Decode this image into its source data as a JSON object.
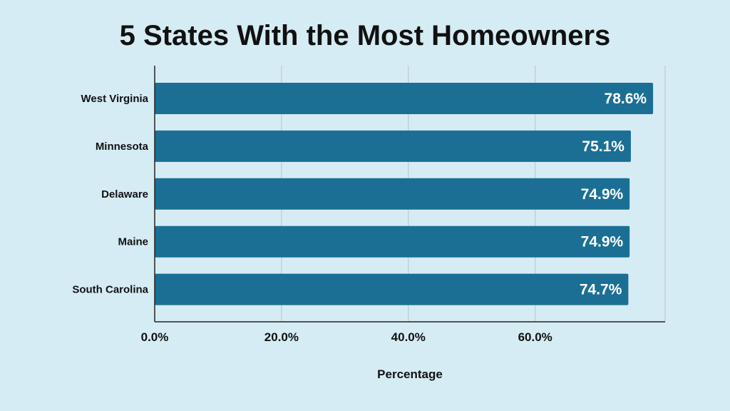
{
  "chart_data": {
    "type": "bar",
    "orientation": "horizontal",
    "title": "5 States With the Most Homeowners",
    "categories": [
      "West Virginia",
      "Minnesota",
      "Delaware",
      "Maine",
      "South Carolina"
    ],
    "values": [
      78.6,
      75.1,
      74.9,
      74.9,
      74.7
    ],
    "value_labels": [
      "78.6%",
      "75.1%",
      "74.9%",
      "74.9%",
      "74.7%"
    ],
    "xlabel": "Percentage",
    "ylabel": "",
    "x_ticks": [
      0,
      20,
      40,
      60
    ],
    "x_tick_labels": [
      "0.0%",
      "20.0%",
      "40.0%",
      "60.0%"
    ],
    "xlim": [
      0,
      80.5
    ],
    "grid": true,
    "colors": {
      "bar": "#1b6f94",
      "background": "#d6ecf5",
      "grid": "#b9c3c9"
    }
  }
}
